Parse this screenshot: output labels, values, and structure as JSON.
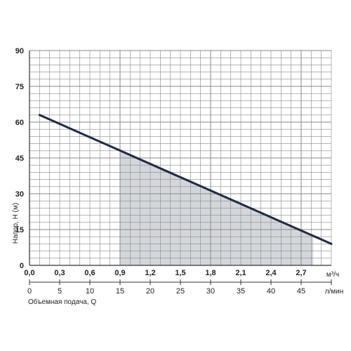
{
  "chart_data": {
    "type": "line",
    "ylabel": "Напор, H (м)",
    "xlabel": "Объемная подача, Q",
    "x_unit_primary": "м³/ч",
    "x_unit_secondary": "л/мин",
    "ylim": [
      0,
      90
    ],
    "xlim": [
      0,
      3.0
    ],
    "grid": true,
    "y_ticks": [
      "0",
      "15",
      "30",
      "45",
      "60",
      "75",
      "90"
    ],
    "x_ticks_primary": [
      "0,0",
      "0,3",
      "0,6",
      "0,9",
      "1,2",
      "1,5",
      "1,8",
      "2,1",
      "2,4",
      "2,7"
    ],
    "x_ticks_secondary": [
      "0",
      "5",
      "10",
      "15",
      "20",
      "25",
      "30",
      "35",
      "40",
      "45"
    ],
    "series": [
      {
        "x": [
          0.1,
          3.0
        ],
        "y": [
          63,
          9
        ]
      }
    ],
    "shaded_region": {
      "x_start": 0.9,
      "x_end": 2.82
    },
    "colors": {
      "line": "#1f2a44",
      "shade": "#d3d6db",
      "grid": "#8a8a8a"
    }
  }
}
